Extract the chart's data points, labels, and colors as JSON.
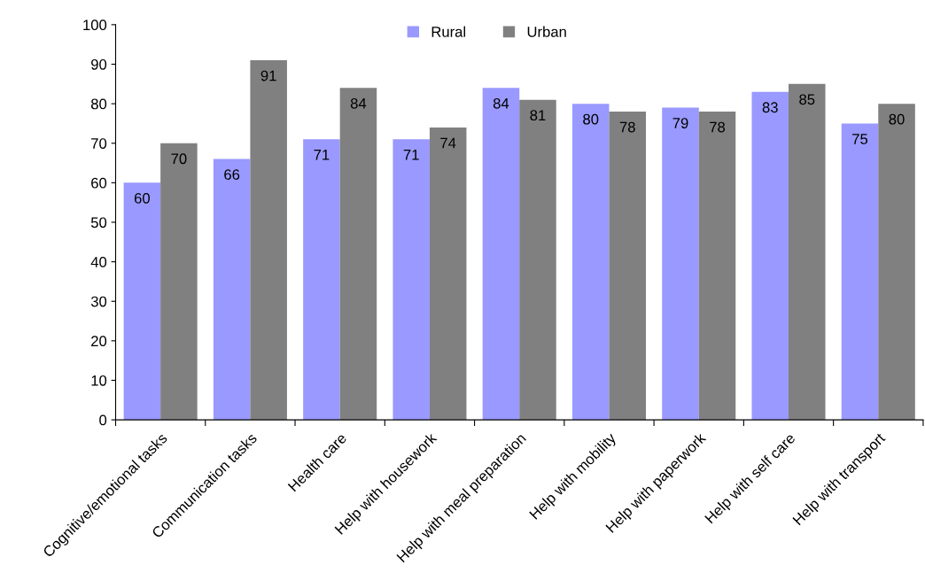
{
  "chart_data": {
    "type": "bar",
    "categories": [
      "Cognitive/emotional tasks",
      "Communication tasks",
      "Health care",
      "Help with housework",
      "Help with meal preparation",
      "Help with mobility",
      "Help with paperwork",
      "Help with self care",
      "Help with transport"
    ],
    "series": [
      {
        "name": "Rural",
        "color": "#9999ff",
        "values": [
          60,
          66,
          71,
          71,
          84,
          80,
          79,
          83,
          75
        ]
      },
      {
        "name": "Urban",
        "color": "#808080",
        "values": [
          70,
          91,
          84,
          74,
          81,
          78,
          78,
          85,
          80
        ]
      }
    ],
    "ylim": [
      0,
      100
    ],
    "yticks": [
      0,
      10,
      20,
      30,
      40,
      50,
      60,
      70,
      80,
      90,
      100
    ],
    "data_labels": true,
    "legend": "top",
    "grid": false
  }
}
